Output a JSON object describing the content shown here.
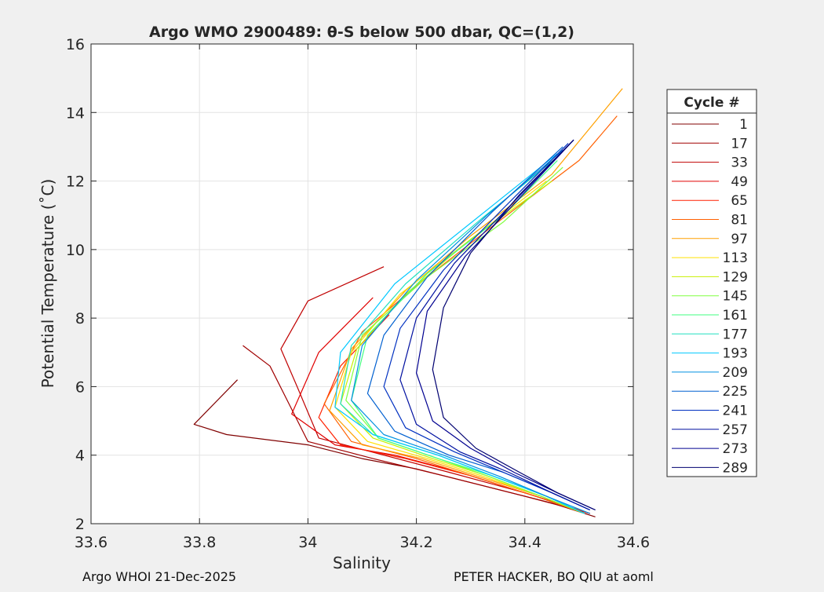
{
  "chart_data": {
    "type": "line",
    "title": "Argo WMO 2900489: θ-S below 500 dbar,  QC=(1,2)",
    "xlabel": "Salinity",
    "ylabel": "Potential Temperature (˚C)",
    "xlim": [
      33.6,
      34.6
    ],
    "ylim": [
      2,
      16
    ],
    "xticks": [
      "33.6",
      "33.8",
      "34",
      "34.2",
      "34.4",
      "34.6"
    ],
    "yticks": [
      "2",
      "4",
      "6",
      "8",
      "10",
      "12",
      "14",
      "16"
    ],
    "grid": true,
    "legend": {
      "title": "Cycle #",
      "placement": "outside-right",
      "entries": [
        {
          "label": "1",
          "color": "#800000"
        },
        {
          "label": "17",
          "color": "#a00000"
        },
        {
          "label": "33",
          "color": "#c00000"
        },
        {
          "label": "49",
          "color": "#e00000"
        },
        {
          "label": "65",
          "color": "#ff2000"
        },
        {
          "label": "81",
          "color": "#ff6000"
        },
        {
          "label": "97",
          "color": "#ffa000"
        },
        {
          "label": "113",
          "color": "#ffe000"
        },
        {
          "label": "129",
          "color": "#c8f000"
        },
        {
          "label": "145",
          "color": "#80ff40"
        },
        {
          "label": "161",
          "color": "#40ff80"
        },
        {
          "label": "177",
          "color": "#20e0c0"
        },
        {
          "label": "193",
          "color": "#00c8ff"
        },
        {
          "label": "209",
          "color": "#0090e0"
        },
        {
          "label": "225",
          "color": "#0060d0"
        },
        {
          "label": "241",
          "color": "#0030c0"
        },
        {
          "label": "257",
          "color": "#0010a0"
        },
        {
          "label": "273",
          "color": "#000090"
        },
        {
          "label": "289",
          "color": "#000070"
        }
      ]
    },
    "series": [
      {
        "color": "#800000",
        "x": [
          34.53,
          34.45,
          34.3,
          34.2,
          34.1,
          34.0,
          33.85,
          33.79,
          33.87
        ],
        "y": [
          2.2,
          2.6,
          3.2,
          3.6,
          3.9,
          4.3,
          4.6,
          4.9,
          6.2
        ]
      },
      {
        "color": "#a00000",
        "x": [
          34.52,
          34.4,
          34.25,
          34.12,
          34.0,
          33.93,
          33.88
        ],
        "y": [
          2.3,
          2.8,
          3.4,
          3.9,
          4.4,
          6.6,
          7.2
        ]
      },
      {
        "color": "#c00000",
        "x": [
          34.52,
          34.4,
          34.26,
          34.14,
          34.02,
          33.98,
          33.95,
          34.0,
          34.14
        ],
        "y": [
          2.3,
          2.9,
          3.5,
          4.0,
          4.5,
          6.0,
          7.1,
          8.5,
          9.5
        ]
      },
      {
        "color": "#e00000",
        "x": [
          34.52,
          34.42,
          34.28,
          34.16,
          34.05,
          33.97,
          34.02,
          34.12
        ],
        "y": [
          2.3,
          2.8,
          3.5,
          4.0,
          4.3,
          5.2,
          7.0,
          8.6
        ]
      },
      {
        "color": "#ff2000",
        "x": [
          34.52,
          34.42,
          34.3,
          34.18,
          34.06,
          34.02,
          34.06,
          34.15
        ],
        "y": [
          2.3,
          2.8,
          3.4,
          3.9,
          4.3,
          5.1,
          6.6,
          8.1
        ]
      },
      {
        "color": "#ff6000",
        "x": [
          34.51,
          34.42,
          34.3,
          34.2,
          34.08,
          34.03,
          34.1,
          34.22,
          34.35,
          34.5,
          34.57
        ],
        "y": [
          2.3,
          2.8,
          3.4,
          3.9,
          4.4,
          5.5,
          7.6,
          9.2,
          10.8,
          12.6,
          13.9
        ]
      },
      {
        "color": "#ffa000",
        "x": [
          34.51,
          34.43,
          34.31,
          34.21,
          34.1,
          34.04,
          34.08,
          34.18,
          34.3,
          34.45,
          34.58
        ],
        "y": [
          2.3,
          2.8,
          3.4,
          3.9,
          4.3,
          5.3,
          7.1,
          8.8,
          10.4,
          12.2,
          14.7
        ]
      },
      {
        "color": "#ffe000",
        "x": [
          34.51,
          34.43,
          34.32,
          34.22,
          34.11,
          34.05,
          34.08,
          34.17,
          34.3,
          34.44
        ],
        "y": [
          2.3,
          2.8,
          3.4,
          3.9,
          4.4,
          5.4,
          7.0,
          8.7,
          10.3,
          12.0
        ]
      },
      {
        "color": "#c8f000",
        "x": [
          34.51,
          34.43,
          34.33,
          34.23,
          34.12,
          34.06,
          34.09,
          34.18,
          34.3,
          34.45
        ],
        "y": [
          2.3,
          2.8,
          3.4,
          3.9,
          4.5,
          5.5,
          7.1,
          8.7,
          10.3,
          12.0
        ]
      },
      {
        "color": "#80ff40",
        "x": [
          34.51,
          34.43,
          34.33,
          34.24,
          34.13,
          34.07,
          34.1,
          34.22,
          34.36,
          34.47
        ],
        "y": [
          2.3,
          2.8,
          3.4,
          3.9,
          4.5,
          5.6,
          7.5,
          9.2,
          10.8,
          12.4
        ]
      },
      {
        "color": "#40ff80",
        "x": [
          34.51,
          34.44,
          34.34,
          34.24,
          34.13,
          34.08,
          34.11,
          34.22,
          34.36,
          34.46
        ],
        "y": [
          2.3,
          2.8,
          3.4,
          3.9,
          4.5,
          5.6,
          7.5,
          9.3,
          11.0,
          12.6
        ]
      },
      {
        "color": "#20e0c0",
        "x": [
          34.51,
          34.44,
          34.34,
          34.24,
          34.12,
          34.06,
          34.08,
          34.18,
          34.32,
          34.46
        ],
        "y": [
          2.3,
          2.8,
          3.4,
          4.0,
          4.6,
          5.5,
          7.2,
          9.0,
          10.9,
          12.7
        ]
      },
      {
        "color": "#00c8ff",
        "x": [
          34.51,
          34.44,
          34.34,
          34.24,
          34.12,
          34.05,
          34.06,
          34.16,
          34.31,
          34.46
        ],
        "y": [
          2.3,
          2.8,
          3.4,
          4.0,
          4.6,
          5.4,
          7.0,
          9.0,
          10.9,
          12.8
        ]
      },
      {
        "color": "#0090e0",
        "x": [
          34.52,
          34.44,
          34.35,
          34.25,
          34.14,
          34.08,
          34.1,
          34.2,
          34.33,
          34.47
        ],
        "y": [
          2.3,
          2.8,
          3.4,
          4.0,
          4.6,
          5.6,
          7.2,
          9.1,
          11.0,
          12.9
        ]
      },
      {
        "color": "#0060d0",
        "x": [
          34.52,
          34.45,
          34.36,
          34.26,
          34.16,
          34.11,
          34.14,
          34.22,
          34.34,
          34.47
        ],
        "y": [
          2.4,
          2.9,
          3.5,
          4.0,
          4.7,
          5.8,
          7.5,
          9.2,
          11.1,
          13.0
        ]
      },
      {
        "color": "#0030c0",
        "x": [
          34.52,
          34.45,
          34.36,
          34.27,
          34.18,
          34.14,
          34.17,
          34.25,
          34.36,
          34.48
        ],
        "y": [
          2.4,
          2.9,
          3.5,
          4.1,
          4.8,
          6.0,
          7.7,
          9.4,
          11.2,
          13.1
        ]
      },
      {
        "color": "#0010a0",
        "x": [
          34.52,
          34.45,
          34.37,
          34.28,
          34.2,
          34.17,
          34.2,
          34.27,
          34.38,
          34.49
        ],
        "y": [
          2.4,
          2.9,
          3.5,
          4.1,
          4.9,
          6.2,
          8.0,
          9.6,
          11.4,
          13.2
        ]
      },
      {
        "color": "#000090",
        "x": [
          34.53,
          34.46,
          34.38,
          34.3,
          34.23,
          34.2,
          34.22,
          34.29,
          34.39,
          34.49
        ],
        "y": [
          2.4,
          2.9,
          3.5,
          4.2,
          5.0,
          6.4,
          8.2,
          9.8,
          11.5,
          13.2
        ]
      },
      {
        "color": "#000070",
        "x": [
          34.53,
          34.46,
          34.39,
          34.31,
          34.25,
          34.23,
          34.25,
          34.3,
          34.39,
          34.49
        ],
        "y": [
          2.4,
          2.9,
          3.5,
          4.2,
          5.1,
          6.5,
          8.3,
          9.9,
          11.6,
          13.2
        ]
      }
    ]
  },
  "footer": {
    "left": "Argo WHOI 21-Dec-2025",
    "right": "PETER HACKER, BO QIU at aoml"
  }
}
